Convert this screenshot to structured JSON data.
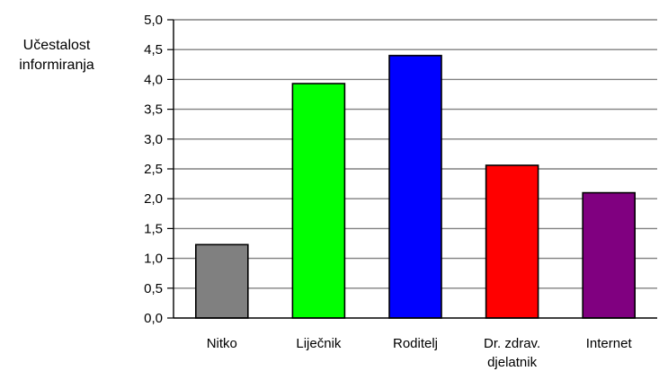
{
  "chart_data": {
    "type": "bar",
    "title": "",
    "xlabel": "",
    "ylabel": [
      "Učestalost",
      "informiranja"
    ],
    "categories": [
      [
        "Nitko"
      ],
      [
        "Liječnik"
      ],
      [
        "Roditelj"
      ],
      [
        "Dr. zdrav.",
        "djelatnik"
      ],
      [
        "Internet"
      ]
    ],
    "values": [
      1.23,
      3.93,
      4.4,
      2.56,
      2.1
    ],
    "colors": [
      "#808080",
      "#00ff00",
      "#0000ff",
      "#ff0000",
      "#800080"
    ],
    "ylim": [
      0,
      5
    ],
    "yticks": [
      "0,0",
      "0,5",
      "1,0",
      "1,5",
      "2,0",
      "2,5",
      "3,0",
      "3,5",
      "4,0",
      "4,5",
      "5,0"
    ],
    "grid": true,
    "legend": "none"
  }
}
